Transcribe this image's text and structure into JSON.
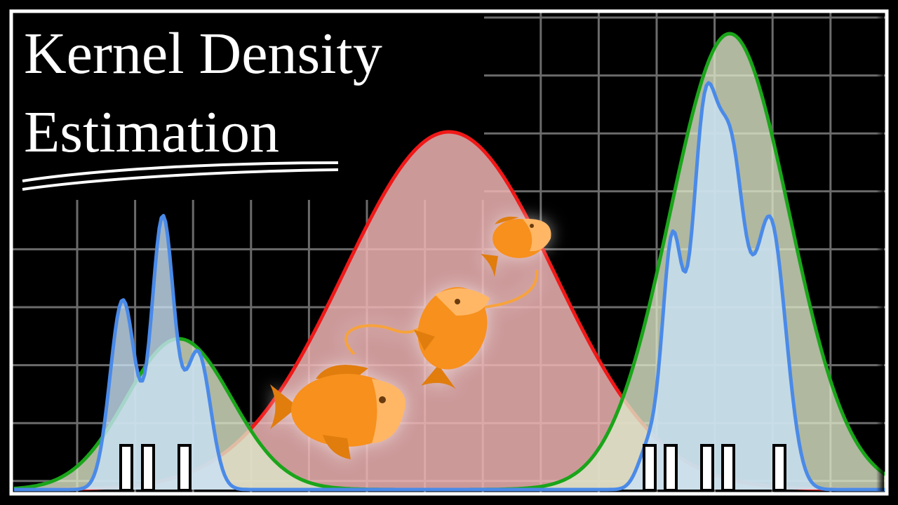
{
  "title": {
    "lines": [
      "Kernel Density",
      "Estimation"
    ]
  }
}
